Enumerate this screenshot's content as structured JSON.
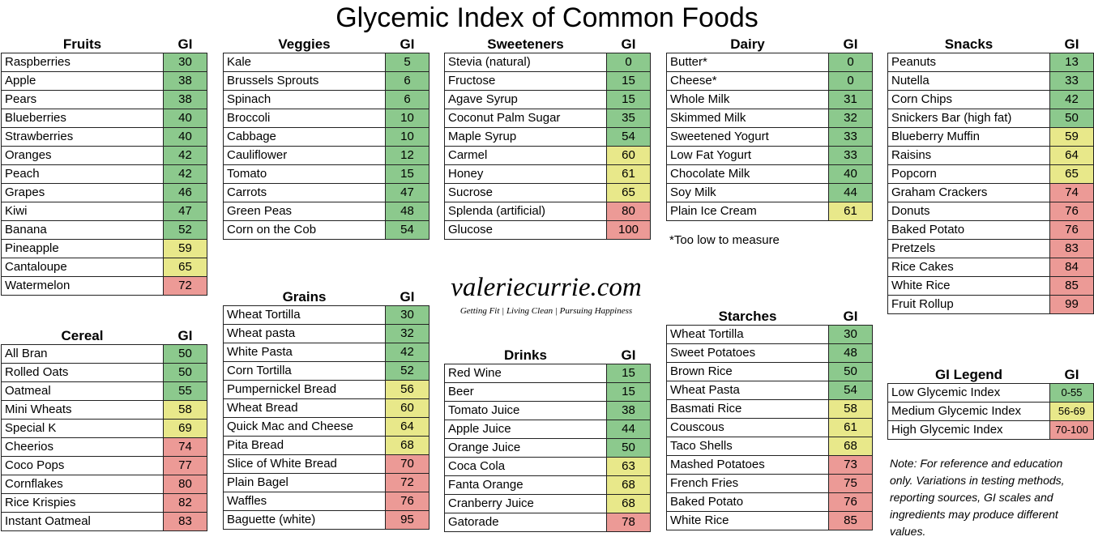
{
  "title": "Glycemic Index of Common Foods",
  "gi_header": "GI",
  "tables": {
    "fruits": {
      "name": "Fruits",
      "rows": [
        {
          "food": "Raspberries",
          "gi": "30",
          "level": "low"
        },
        {
          "food": "Apple",
          "gi": "38",
          "level": "low"
        },
        {
          "food": "Pears",
          "gi": "38",
          "level": "low"
        },
        {
          "food": "Blueberries",
          "gi": "40",
          "level": "low"
        },
        {
          "food": "Strawberries",
          "gi": "40",
          "level": "low"
        },
        {
          "food": "Oranges",
          "gi": "42",
          "level": "low"
        },
        {
          "food": "Peach",
          "gi": "42",
          "level": "low"
        },
        {
          "food": "Grapes",
          "gi": "46",
          "level": "low"
        },
        {
          "food": "Kiwi",
          "gi": "47",
          "level": "low"
        },
        {
          "food": "Banana",
          "gi": "52",
          "level": "low"
        },
        {
          "food": "Pineapple",
          "gi": "59",
          "level": "med"
        },
        {
          "food": "Cantaloupe",
          "gi": "65",
          "level": "med"
        },
        {
          "food": "Watermelon",
          "gi": "72",
          "level": "high"
        }
      ]
    },
    "cereal": {
      "name": "Cereal",
      "rows": [
        {
          "food": "All Bran",
          "gi": "50",
          "level": "low"
        },
        {
          "food": "Rolled Oats",
          "gi": "50",
          "level": "low"
        },
        {
          "food": "Oatmeal",
          "gi": "55",
          "level": "low"
        },
        {
          "food": "Mini Wheats",
          "gi": "58",
          "level": "med"
        },
        {
          "food": "Special K",
          "gi": "69",
          "level": "med"
        },
        {
          "food": "Cheerios",
          "gi": "74",
          "level": "high"
        },
        {
          "food": "Coco Pops",
          "gi": "77",
          "level": "high"
        },
        {
          "food": "Cornflakes",
          "gi": "80",
          "level": "high"
        },
        {
          "food": "Rice Krispies",
          "gi": "82",
          "level": "high"
        },
        {
          "food": "Instant Oatmeal",
          "gi": "83",
          "level": "high"
        }
      ]
    },
    "veggies": {
      "name": "Veggies",
      "rows": [
        {
          "food": "Kale",
          "gi": "5",
          "level": "low"
        },
        {
          "food": "Brussels Sprouts",
          "gi": "6",
          "level": "low"
        },
        {
          "food": "Spinach",
          "gi": "6",
          "level": "low"
        },
        {
          "food": "Broccoli",
          "gi": "10",
          "level": "low"
        },
        {
          "food": "Cabbage",
          "gi": "10",
          "level": "low"
        },
        {
          "food": "Cauliflower",
          "gi": "12",
          "level": "low"
        },
        {
          "food": "Tomato",
          "gi": "15",
          "level": "low"
        },
        {
          "food": "Carrots",
          "gi": "47",
          "level": "low"
        },
        {
          "food": "Green Peas",
          "gi": "48",
          "level": "low"
        },
        {
          "food": "Corn on the Cob",
          "gi": "54",
          "level": "low"
        }
      ]
    },
    "grains": {
      "name": "Grains",
      "rows": [
        {
          "food": "Wheat Tortilla",
          "gi": "30",
          "level": "low"
        },
        {
          "food": "Wheat pasta",
          "gi": "32",
          "level": "low"
        },
        {
          "food": "White Pasta",
          "gi": "42",
          "level": "low"
        },
        {
          "food": "Corn Tortilla",
          "gi": "52",
          "level": "low"
        },
        {
          "food": "Pumpernickel Bread",
          "gi": "56",
          "level": "med"
        },
        {
          "food": "Wheat Bread",
          "gi": "60",
          "level": "med"
        },
        {
          "food": "Quick Mac and Cheese",
          "gi": "64",
          "level": "med"
        },
        {
          "food": "Pita Bread",
          "gi": "68",
          "level": "med"
        },
        {
          "food": "Slice of White Bread",
          "gi": "70",
          "level": "high"
        },
        {
          "food": "Plain Bagel",
          "gi": "72",
          "level": "high"
        },
        {
          "food": "Waffles",
          "gi": "76",
          "level": "high"
        },
        {
          "food": "Baguette (white)",
          "gi": "95",
          "level": "high"
        }
      ]
    },
    "sweeteners": {
      "name": "Sweeteners",
      "rows": [
        {
          "food": "Stevia (natural)",
          "gi": "0",
          "level": "low"
        },
        {
          "food": "Fructose",
          "gi": "15",
          "level": "low"
        },
        {
          "food": "Agave Syrup",
          "gi": "15",
          "level": "low"
        },
        {
          "food": "Coconut Palm Sugar",
          "gi": "35",
          "level": "low"
        },
        {
          "food": "Maple Syrup",
          "gi": "54",
          "level": "low"
        },
        {
          "food": "Carmel",
          "gi": "60",
          "level": "med"
        },
        {
          "food": "Honey",
          "gi": "61",
          "level": "med"
        },
        {
          "food": "Sucrose",
          "gi": "65",
          "level": "med"
        },
        {
          "food": "Splenda (artificial)",
          "gi": "80",
          "level": "high"
        },
        {
          "food": "Glucose",
          "gi": "100",
          "level": "high"
        }
      ]
    },
    "drinks": {
      "name": "Drinks",
      "rows": [
        {
          "food": "Red Wine",
          "gi": "15",
          "level": "low"
        },
        {
          "food": "Beer",
          "gi": "15",
          "level": "low"
        },
        {
          "food": "Tomato Juice",
          "gi": "38",
          "level": "low"
        },
        {
          "food": "Apple Juice",
          "gi": "44",
          "level": "low"
        },
        {
          "food": "Orange Juice",
          "gi": "50",
          "level": "low"
        },
        {
          "food": "Coca Cola",
          "gi": "63",
          "level": "med"
        },
        {
          "food": "Fanta Orange",
          "gi": "68",
          "level": "med"
        },
        {
          "food": "Cranberry Juice",
          "gi": "68",
          "level": "med"
        },
        {
          "food": "Gatorade",
          "gi": "78",
          "level": "high"
        }
      ]
    },
    "dairy": {
      "name": "Dairy",
      "rows": [
        {
          "food": "Butter*",
          "gi": "0",
          "level": "low"
        },
        {
          "food": "Cheese*",
          "gi": "0",
          "level": "low"
        },
        {
          "food": "Whole Milk",
          "gi": "31",
          "level": "low"
        },
        {
          "food": "Skimmed Milk",
          "gi": "32",
          "level": "low"
        },
        {
          "food": "Sweetened Yogurt",
          "gi": "33",
          "level": "low"
        },
        {
          "food": "Low Fat Yogurt",
          "gi": "33",
          "level": "low"
        },
        {
          "food": "Chocolate Milk",
          "gi": "40",
          "level": "low"
        },
        {
          "food": "Soy Milk",
          "gi": "44",
          "level": "low"
        },
        {
          "food": "Plain Ice Cream",
          "gi": "61",
          "level": "med"
        }
      ]
    },
    "starches": {
      "name": "Starches",
      "rows": [
        {
          "food": "Wheat Tortilla",
          "gi": "30",
          "level": "low"
        },
        {
          "food": "Sweet Potatoes",
          "gi": "48",
          "level": "low"
        },
        {
          "food": "Brown Rice",
          "gi": "50",
          "level": "low"
        },
        {
          "food": "Wheat Pasta",
          "gi": "54",
          "level": "low"
        },
        {
          "food": "Basmati Rice",
          "gi": "58",
          "level": "med"
        },
        {
          "food": "Couscous",
          "gi": "61",
          "level": "med"
        },
        {
          "food": "Taco Shells",
          "gi": "68",
          "level": "med"
        },
        {
          "food": "Mashed Potatoes",
          "gi": "73",
          "level": "high"
        },
        {
          "food": "French Fries",
          "gi": "75",
          "level": "high"
        },
        {
          "food": "Baked Potato",
          "gi": "76",
          "level": "high"
        },
        {
          "food": "White Rice",
          "gi": "85",
          "level": "high"
        }
      ]
    },
    "snacks": {
      "name": "Snacks",
      "rows": [
        {
          "food": "Peanuts",
          "gi": "13",
          "level": "low"
        },
        {
          "food": "Nutella",
          "gi": "33",
          "level": "low"
        },
        {
          "food": "Corn Chips",
          "gi": "42",
          "level": "low"
        },
        {
          "food": "Snickers Bar (high fat)",
          "gi": "50",
          "level": "low"
        },
        {
          "food": "Blueberry Muffin",
          "gi": "59",
          "level": "med"
        },
        {
          "food": "Raisins",
          "gi": "64",
          "level": "med"
        },
        {
          "food": "Popcorn",
          "gi": "65",
          "level": "med"
        },
        {
          "food": "Graham Crackers",
          "gi": "74",
          "level": "high"
        },
        {
          "food": "Donuts",
          "gi": "76",
          "level": "high"
        },
        {
          "food": "Baked Potato",
          "gi": "76",
          "level": "high"
        },
        {
          "food": "Pretzels",
          "gi": "83",
          "level": "high"
        },
        {
          "food": "Rice Cakes",
          "gi": "84",
          "level": "high"
        },
        {
          "food": "White Rice",
          "gi": "85",
          "level": "high"
        },
        {
          "food": "Fruit Rollup",
          "gi": "99",
          "level": "high"
        }
      ]
    },
    "legend": {
      "name": "GI Legend",
      "rows": [
        {
          "food": "Low Glycemic Index",
          "gi": "0-55",
          "level": "low"
        },
        {
          "food": "Medium Glycemic Index",
          "gi": "56-69",
          "level": "med"
        },
        {
          "food": "High Glycemic Index",
          "gi": "70-100",
          "level": "high"
        }
      ]
    }
  },
  "colors": {
    "low": "#8cc98d",
    "med": "#e8e88a",
    "high": "#ec9a96"
  },
  "dairy_footnote": "*Too low to measure",
  "brand": {
    "name": "valeriecurrie.com",
    "tagline": "Getting Fit | Living Clean | Pursuing Happiness"
  },
  "note": "Note: For reference and education only.  Variations in testing methods, reporting sources, GI scales and ingredients may produce different values."
}
